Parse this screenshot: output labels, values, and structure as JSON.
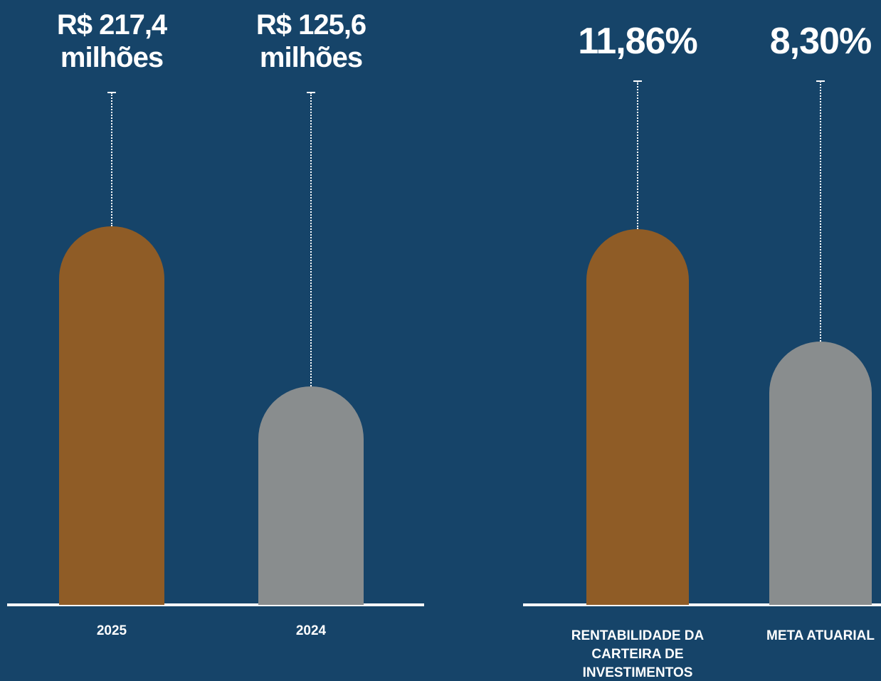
{
  "chart_data": [
    {
      "type": "bar",
      "categories": [
        "2025",
        "2024"
      ],
      "values": [
        217.4,
        125.6
      ],
      "value_labels": [
        "R$ 217,4 milhões",
        "R$ 125,6 milhões"
      ],
      "colors": [
        "#8f5c26",
        "#898d8e"
      ]
    },
    {
      "type": "bar",
      "categories": [
        "RENTABILIDADE DA CARTEIRA DE INVESTIMENTOS",
        "META ATUARIAL"
      ],
      "values": [
        11.86,
        8.3
      ],
      "value_labels": [
        "11,86%",
        "8,30%"
      ],
      "colors": [
        "#8f5c26",
        "#898d8e"
      ]
    }
  ]
}
